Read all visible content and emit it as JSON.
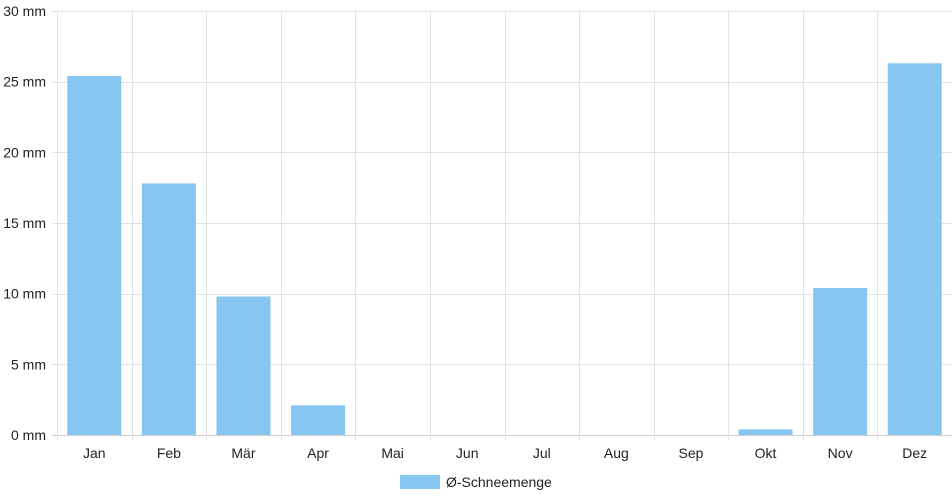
{
  "chart_data": {
    "type": "bar",
    "categories": [
      "Jan",
      "Feb",
      "Mär",
      "Apr",
      "Mai",
      "Jun",
      "Jul",
      "Aug",
      "Sep",
      "Okt",
      "Nov",
      "Dez"
    ],
    "series": [
      {
        "name": "Ø-Schneemenge",
        "values": [
          25.4,
          17.8,
          9.8,
          2.1,
          0,
          0,
          0,
          0,
          0,
          0.4,
          10.4,
          26.3
        ],
        "color": "#88c6f2"
      }
    ],
    "y_unit": "mm",
    "y_ticks": [
      0,
      5,
      10,
      15,
      20,
      25,
      30
    ],
    "ylim": [
      0,
      30
    ],
    "grid": true,
    "grid_color": "#e2e2e2",
    "legend_position": "bottom-center"
  }
}
